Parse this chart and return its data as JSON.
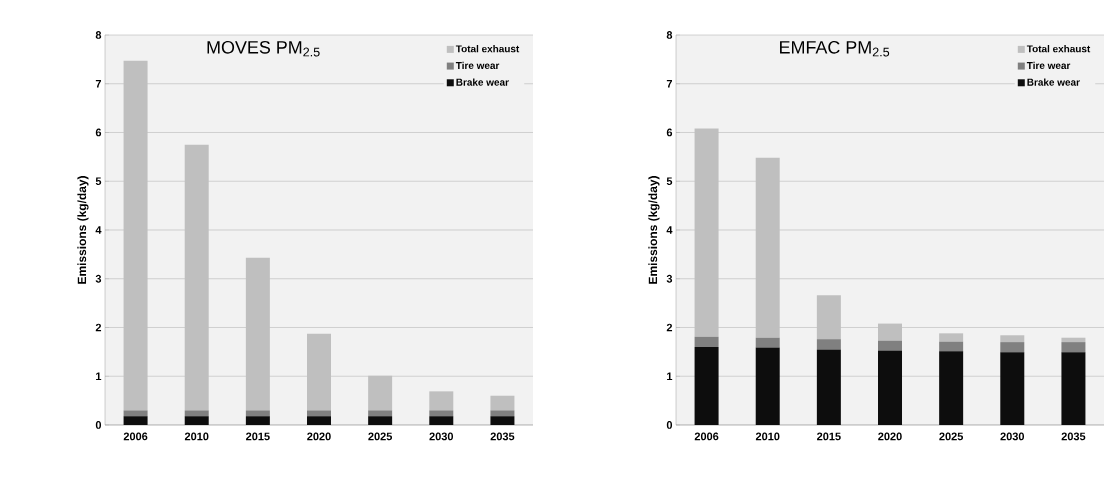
{
  "chart_data": [
    {
      "type": "bar",
      "stacked": true,
      "title": "MOVES PM$_{2.5}$",
      "ylabel": "Emissions (kg/day)",
      "categories": [
        "2006",
        "2010",
        "2015",
        "2020",
        "2025",
        "2030",
        "2035"
      ],
      "series": [
        {
          "name": "Brake wear",
          "color": "#0d0d0d",
          "values": [
            0.18,
            0.18,
            0.18,
            0.18,
            0.18,
            0.18,
            0.18
          ]
        },
        {
          "name": "Tire wear",
          "color": "#808080",
          "values": [
            0.12,
            0.12,
            0.12,
            0.12,
            0.12,
            0.12,
            0.12
          ]
        },
        {
          "name": "Total exhaust",
          "color": "#bfbfbf",
          "values": [
            7.17,
            5.45,
            3.13,
            1.57,
            0.71,
            0.39,
            0.3
          ]
        }
      ],
      "ylim": [
        0,
        8
      ],
      "yticks": [
        0,
        1,
        2,
        3,
        4,
        5,
        6,
        7,
        8
      ],
      "grid": "y",
      "legend": "top right"
    },
    {
      "type": "bar",
      "stacked": true,
      "title": "EMFAC PM$_{2.5}$",
      "ylabel": "Emissions (kg/day)",
      "categories": [
        "2006",
        "2010",
        "2015",
        "2020",
        "2025",
        "2030",
        "2035"
      ],
      "series": [
        {
          "name": "Brake wear",
          "color": "#0d0d0d",
          "values": [
            1.6,
            1.59,
            1.55,
            1.53,
            1.51,
            1.49,
            1.49
          ]
        },
        {
          "name": "Tire wear",
          "color": "#808080",
          "values": [
            0.21,
            0.2,
            0.21,
            0.2,
            0.2,
            0.21,
            0.21
          ]
        },
        {
          "name": "Total exhaust",
          "color": "#bfbfbf",
          "values": [
            4.27,
            3.69,
            0.9,
            0.35,
            0.17,
            0.14,
            0.09
          ]
        }
      ],
      "ylim": [
        0,
        8
      ],
      "yticks": [
        0,
        1,
        2,
        3,
        4,
        5,
        6,
        7,
        8
      ],
      "grid": "y",
      "legend": "top right"
    }
  ]
}
